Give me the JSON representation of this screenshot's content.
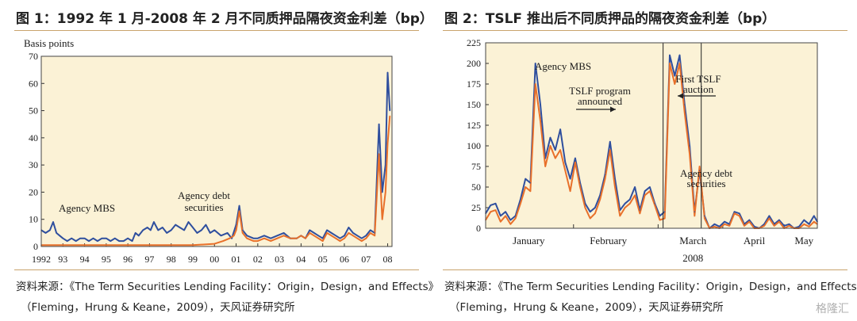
{
  "figures": [
    {
      "title": "图 1：1992 年 1 月-2008 年 2 月不同质押品隔夜资金利差（bp）",
      "source_line1": "资料来源：《The Term Securities Lending Facility：Origin，Design，and Effects》",
      "source_line2": "（Fleming，Hrung & Keane，2009），天风证券研究所"
    },
    {
      "title": "图 2：TSLF 推出后不同质押品的隔夜资金利差（bp）",
      "source_line1": "资料来源：《The Term Securities Lending Facility：Origin，Design，and Effects》",
      "source_line2": "（Fleming，Hrung & Keane，2009），天风证券研究所"
    }
  ],
  "watermark": "格隆汇",
  "colors": {
    "mbs": "#2f4f9e",
    "debt": "#e8702a",
    "panel_bg": "#fbf2d6",
    "frame": "#444444"
  },
  "chart_data": [
    {
      "type": "line",
      "ylabel": "Basis points",
      "ylim": [
        0,
        70
      ],
      "yticks": [
        0,
        10,
        20,
        30,
        40,
        50,
        60,
        70
      ],
      "xlim": [
        1992,
        2008.2
      ],
      "xtick_values": [
        1992,
        1993,
        1994,
        1995,
        1996,
        1997,
        1998,
        1999,
        2000,
        2001,
        2002,
        2003,
        2004,
        2005,
        2006,
        2007,
        2008
      ],
      "xtick_labels": [
        "1992",
        "93",
        "94",
        "95",
        "96",
        "97",
        "98",
        "99",
        "00",
        "01",
        "02",
        "03",
        "04",
        "05",
        "06",
        "07",
        "08"
      ],
      "annotations": [
        {
          "text": "Agency MBS",
          "series": "Agency MBS"
        },
        {
          "text": "Agency debt",
          "series": "Agency debt securities"
        },
        {
          "text": "securities",
          "series": "Agency debt securities"
        }
      ],
      "series": [
        {
          "name": "Agency MBS",
          "color": "#2f4f9e",
          "x": [
            1992.0,
            1992.2,
            1992.4,
            1992.55,
            1992.7,
            1992.85,
            1993.0,
            1993.2,
            1993.4,
            1993.6,
            1993.8,
            1994.0,
            1994.2,
            1994.4,
            1994.6,
            1994.8,
            1995.0,
            1995.2,
            1995.4,
            1995.6,
            1995.8,
            1996.0,
            1996.2,
            1996.35,
            1996.5,
            1996.7,
            1996.9,
            1997.05,
            1997.2,
            1997.4,
            1997.6,
            1997.8,
            1998.0,
            1998.2,
            1998.4,
            1998.6,
            1998.8,
            1999.0,
            1999.2,
            1999.4,
            1999.6,
            1999.8,
            2000.0,
            2000.3,
            2000.6,
            2000.8,
            2001.0,
            2001.15,
            2001.3,
            2001.5,
            2001.8,
            2002.0,
            2002.3,
            2002.6,
            2002.9,
            2003.2,
            2003.5,
            2003.8,
            2004.0,
            2004.2,
            2004.4,
            2004.6,
            2004.8,
            2005.0,
            2005.2,
            2005.4,
            2005.6,
            2005.8,
            2006.0,
            2006.2,
            2006.4,
            2006.6,
            2006.8,
            2007.0,
            2007.2,
            2007.4,
            2007.6,
            2007.75,
            2007.9,
            2008.0,
            2008.1
          ],
          "y": [
            6,
            5,
            6,
            9,
            5,
            4,
            3,
            2,
            3,
            2,
            3,
            3,
            2,
            3,
            2,
            3,
            3,
            2,
            3,
            2,
            2,
            3,
            2,
            5,
            4,
            6,
            7,
            6,
            9,
            6,
            7,
            5,
            6,
            8,
            7,
            6,
            9,
            7,
            5,
            6,
            8,
            5,
            6,
            4,
            5,
            3,
            8,
            15,
            6,
            4,
            3,
            3,
            4,
            3,
            4,
            5,
            3,
            3,
            4,
            3,
            6,
            5,
            4,
            3,
            6,
            5,
            4,
            3,
            4,
            7,
            5,
            4,
            3,
            4,
            6,
            5,
            45,
            20,
            30,
            64,
            50
          ]
        },
        {
          "name": "Agency debt securities",
          "color": "#e8702a",
          "x": [
            1992.0,
            1993.0,
            1994.0,
            1995.0,
            1996.0,
            1997.0,
            1998.0,
            1999.0,
            2000.0,
            2000.4,
            2000.7,
            2000.9,
            2001.0,
            2001.15,
            2001.3,
            2001.5,
            2001.8,
            2002.0,
            2002.3,
            2002.6,
            2002.9,
            2003.2,
            2003.5,
            2003.8,
            2004.0,
            2004.2,
            2004.4,
            2004.6,
            2004.8,
            2005.0,
            2005.2,
            2005.4,
            2005.6,
            2005.8,
            2006.0,
            2006.2,
            2006.4,
            2006.6,
            2006.8,
            2007.0,
            2007.2,
            2007.4,
            2007.6,
            2007.75,
            2007.9,
            2008.0,
            2008.1
          ],
          "y": [
            0.5,
            0.5,
            0.5,
            0.5,
            0.5,
            0.5,
            0.5,
            0.5,
            1,
            2,
            3,
            4,
            6,
            13,
            5,
            3,
            2,
            2,
            3,
            2,
            3,
            4,
            3,
            3,
            4,
            3,
            5,
            4,
            3,
            2,
            5,
            4,
            3,
            2,
            3,
            5,
            4,
            3,
            2,
            3,
            5,
            4,
            34,
            10,
            20,
            38,
            48
          ]
        }
      ]
    },
    {
      "type": "line",
      "ylim": [
        0,
        225
      ],
      "yticks": [
        0,
        25,
        50,
        75,
        100,
        125,
        150,
        175,
        200,
        225
      ],
      "xlim": [
        0,
        100
      ],
      "xtick_labels": [
        "January",
        "February",
        "March",
        "April",
        "May"
      ],
      "xlabel": "2008",
      "annotations": [
        {
          "text": "Agency MBS",
          "series": "Agency MBS"
        },
        {
          "text": "TSLF program",
          "series": ""
        },
        {
          "text": "announced",
          "series": ""
        },
        {
          "text": "First TSLF",
          "series": ""
        },
        {
          "text": "auction",
          "series": ""
        },
        {
          "text": "Agency debt",
          "series": "Agency debt securities"
        },
        {
          "text": "securities",
          "series": "Agency debt securities"
        }
      ],
      "series": [
        {
          "name": "Agency MBS",
          "color": "#2f4f9e",
          "x": [
            0,
            1.5,
            3,
            4.5,
            6,
            7.5,
            9,
            10.5,
            12,
            13.5,
            15,
            16.5,
            18,
            19.5,
            21,
            22.5,
            24,
            25.5,
            27,
            28.5,
            30,
            31.5,
            33,
            34.5,
            36,
            37.5,
            39,
            40.5,
            42,
            43.5,
            45,
            46.5,
            48,
            49.5,
            51,
            52.5,
            54,
            55.5,
            57,
            58.5,
            60,
            61.5,
            63,
            64.5,
            66,
            67.5,
            69,
            70.5,
            72,
            73.5,
            75,
            76.5,
            78,
            79.5,
            81,
            82.5,
            84,
            85.5,
            87,
            88.5,
            90,
            91.5,
            93,
            94.5,
            96,
            97.5,
            99,
            100
          ],
          "y": [
            18,
            28,
            30,
            15,
            20,
            10,
            15,
            35,
            60,
            55,
            200,
            150,
            85,
            110,
            95,
            120,
            80,
            60,
            85,
            55,
            30,
            20,
            25,
            40,
            65,
            105,
            60,
            22,
            30,
            35,
            50,
            22,
            45,
            50,
            30,
            15,
            20,
            210,
            185,
            210,
            150,
            100,
            20,
            70,
            15,
            0,
            5,
            2,
            8,
            5,
            20,
            18,
            5,
            10,
            2,
            0,
            5,
            15,
            5,
            10,
            3,
            5,
            0,
            2,
            10,
            5,
            15,
            8
          ]
        },
        {
          "name": "Agency debt securities",
          "color": "#e8702a",
          "x": [
            0,
            1.5,
            3,
            4.5,
            6,
            7.5,
            9,
            10.5,
            12,
            13.5,
            15,
            16.5,
            18,
            19.5,
            21,
            22.5,
            24,
            25.5,
            27,
            28.5,
            30,
            31.5,
            33,
            34.5,
            36,
            37.5,
            39,
            40.5,
            42,
            43.5,
            45,
            46.5,
            48,
            49.5,
            51,
            52.5,
            54,
            55.5,
            57,
            58.5,
            60,
            61.5,
            63,
            64.5,
            66,
            67.5,
            69,
            70.5,
            72,
            73.5,
            75,
            76.5,
            78,
            79.5,
            81,
            82.5,
            84,
            85.5,
            87,
            88.5,
            90,
            91.5,
            93,
            94.5,
            96,
            97.5,
            99,
            100
          ],
          "y": [
            10,
            20,
            22,
            8,
            15,
            5,
            12,
            30,
            50,
            45,
            175,
            130,
            75,
            100,
            85,
            95,
            70,
            45,
            80,
            50,
            25,
            12,
            18,
            35,
            60,
            95,
            50,
            15,
            25,
            30,
            40,
            18,
            40,
            45,
            28,
            10,
            12,
            200,
            175,
            200,
            140,
            90,
            15,
            75,
            12,
            0,
            2,
            0,
            5,
            3,
            18,
            15,
            3,
            8,
            0,
            0,
            3,
            12,
            3,
            8,
            0,
            3,
            0,
            0,
            5,
            2,
            8,
            5
          ]
        }
      ]
    }
  ]
}
